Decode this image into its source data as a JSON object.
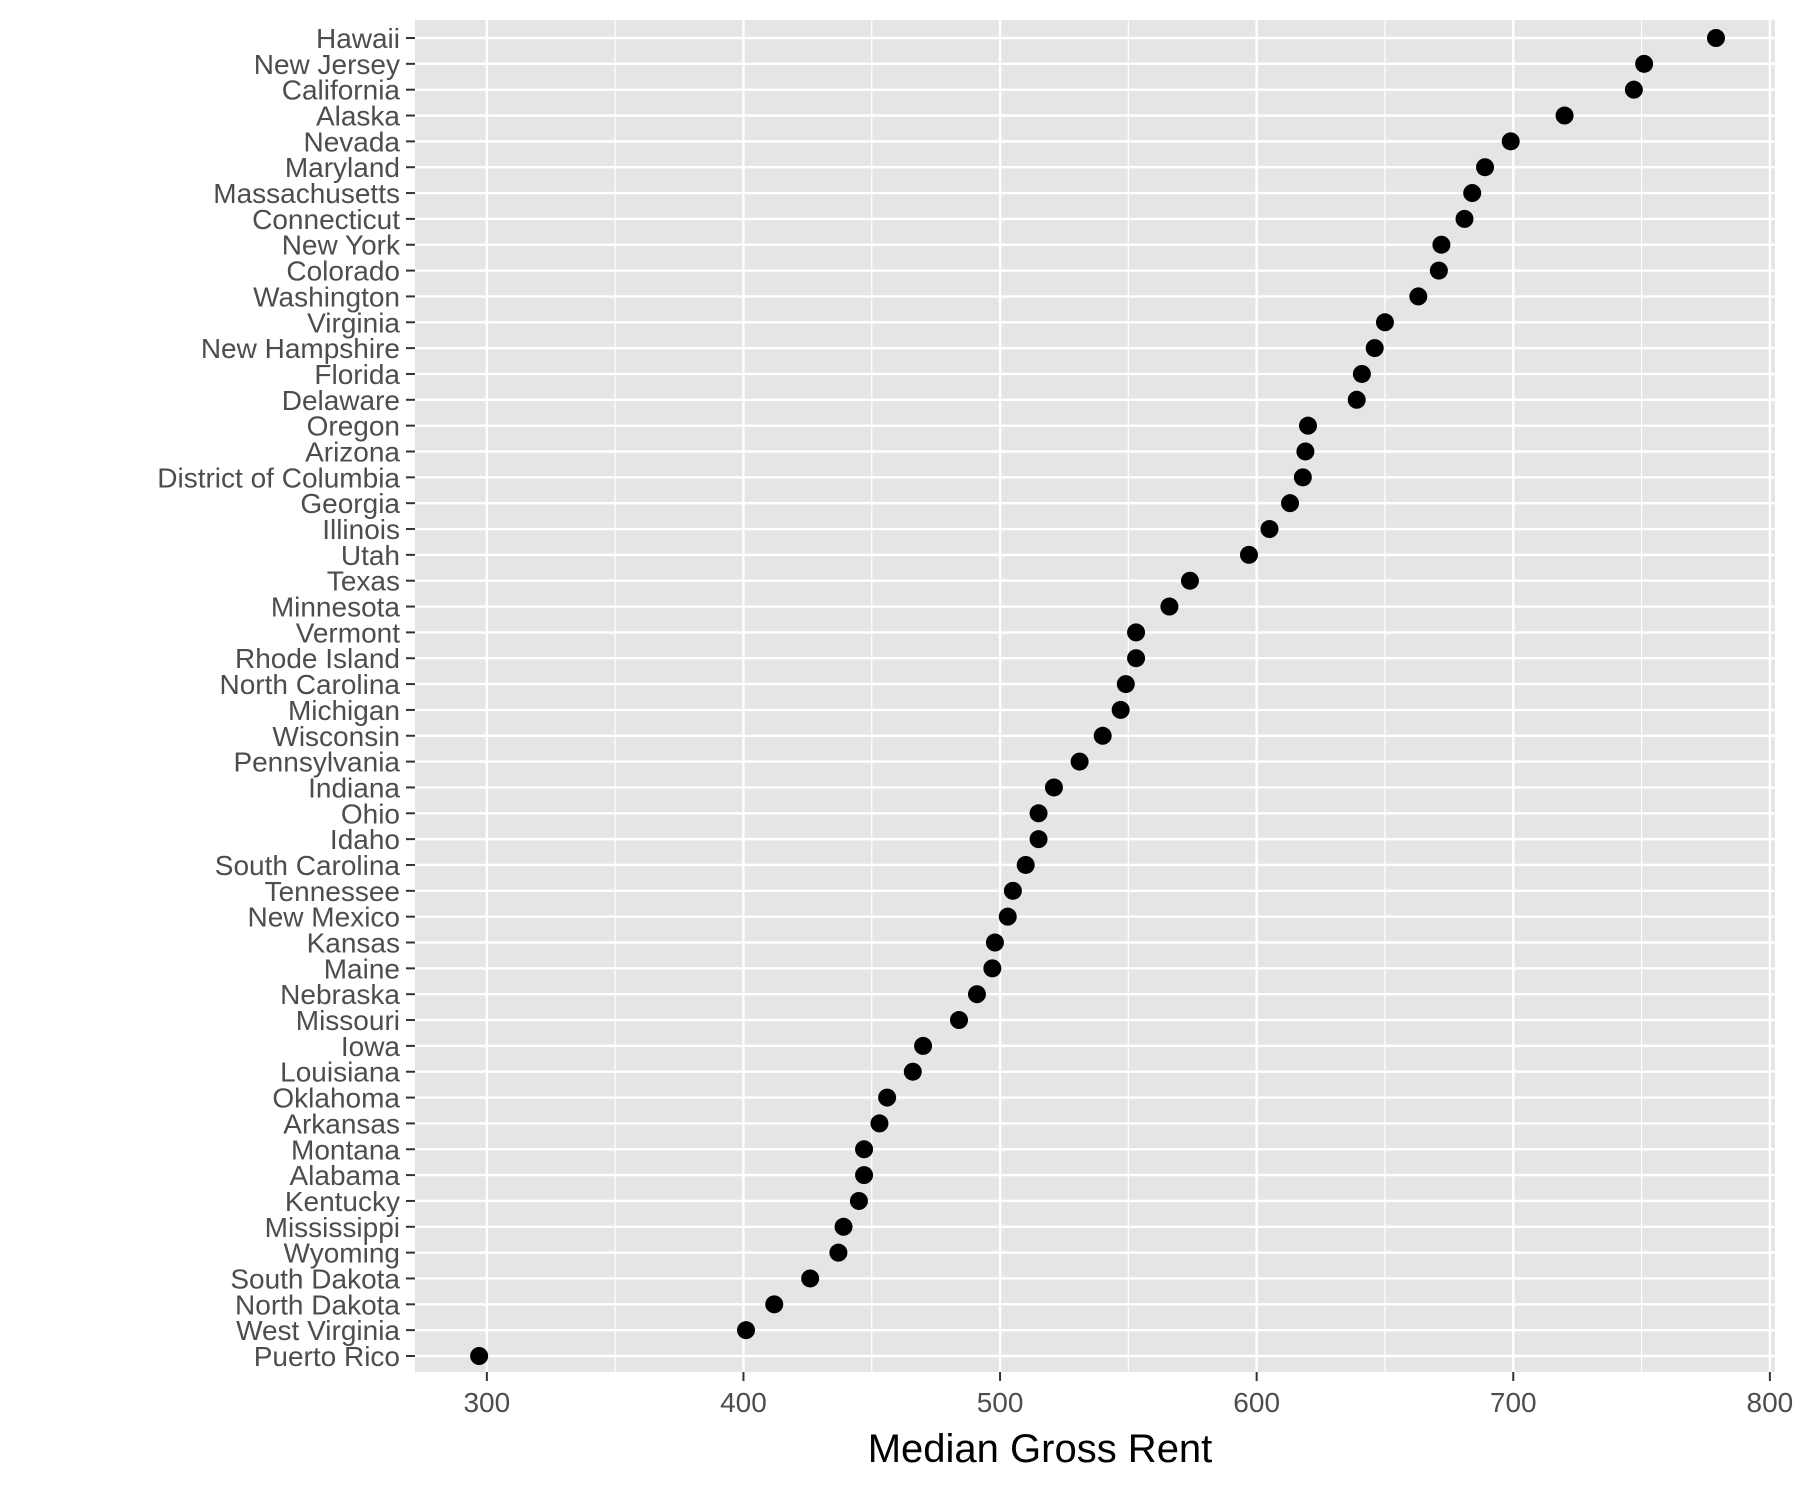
{
  "chart_data": {
    "type": "scatter",
    "title": "",
    "xlabel": "Median Gross Rent",
    "ylabel": "",
    "xlim": [
      272,
      802
    ],
    "x_ticks": [
      300,
      400,
      500,
      600,
      700,
      800
    ],
    "x_tick_labels": [
      "300",
      "400",
      "500",
      "600",
      "700",
      "800"
    ],
    "grid": true,
    "legend": "none",
    "colors": {
      "panel": "#e5e5e5",
      "grid": "#ffffff",
      "point": "#000000",
      "tick_text": "#4d4d4d",
      "tick_mark": "#333333"
    },
    "categories": [
      "Hawaii",
      "New Jersey",
      "California",
      "Alaska",
      "Nevada",
      "Maryland",
      "Massachusetts",
      "Connecticut",
      "New York",
      "Colorado",
      "Washington",
      "Virginia",
      "New Hampshire",
      "Florida",
      "Delaware",
      "Oregon",
      "Arizona",
      "District of Columbia",
      "Georgia",
      "Illinois",
      "Utah",
      "Texas",
      "Minnesota",
      "Vermont",
      "Rhode Island",
      "North Carolina",
      "Michigan",
      "Wisconsin",
      "Pennsylvania",
      "Indiana",
      "Ohio",
      "Idaho",
      "South Carolina",
      "Tennessee",
      "New Mexico",
      "Kansas",
      "Maine",
      "Nebraska",
      "Missouri",
      "Iowa",
      "Louisiana",
      "Oklahoma",
      "Arkansas",
      "Montana",
      "Alabama",
      "Kentucky",
      "Mississippi",
      "Wyoming",
      "South Dakota",
      "North Dakota",
      "West Virginia",
      "Puerto Rico"
    ],
    "values": [
      779,
      751,
      747,
      720,
      699,
      689,
      684,
      681,
      672,
      671,
      663,
      650,
      646,
      641,
      639,
      620,
      619,
      618,
      613,
      605,
      597,
      574,
      566,
      553,
      553,
      549,
      547,
      540,
      531,
      521,
      515,
      515,
      510,
      505,
      503,
      498,
      497,
      491,
      484,
      470,
      466,
      456,
      453,
      447,
      447,
      445,
      439,
      437,
      426,
      412,
      401,
      297
    ]
  }
}
